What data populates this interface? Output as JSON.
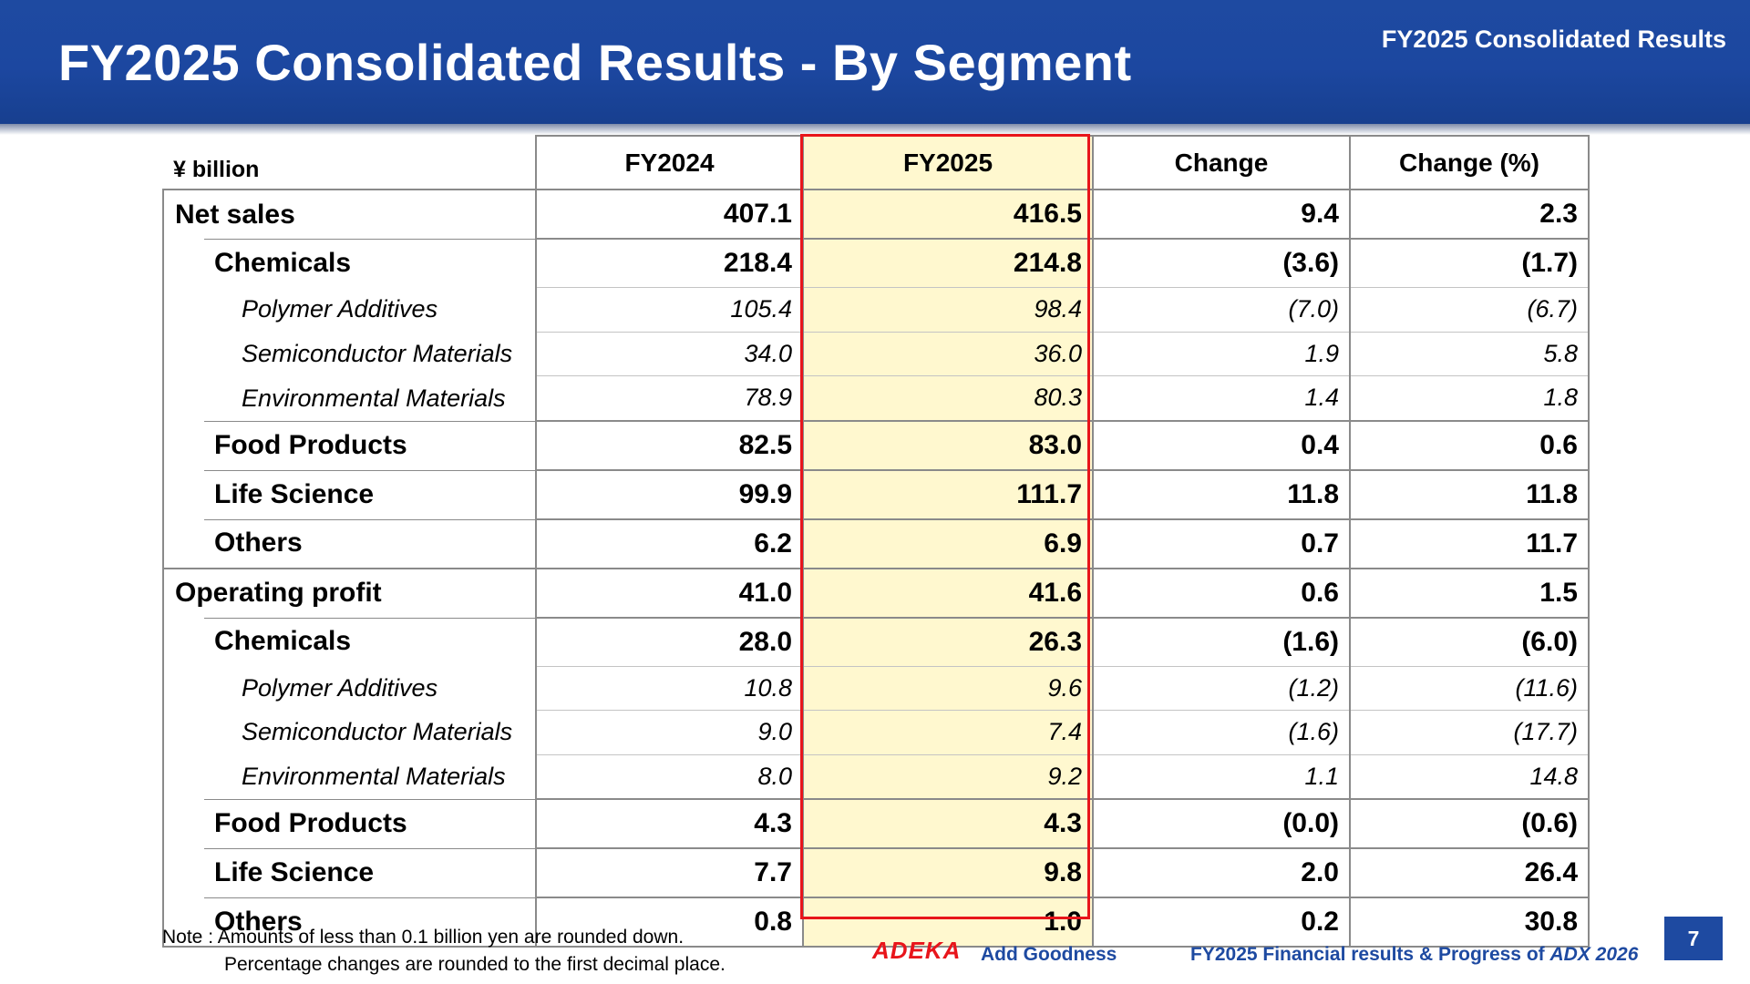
{
  "header": {
    "title": "FY2025 Consolidated Results - By Segment",
    "section": "FY2025 Consolidated Results"
  },
  "table": {
    "unit": "¥ billion",
    "columns": [
      "FY2024",
      "FY2025",
      "Change",
      "Change (%)"
    ],
    "rows": [
      {
        "label": "Net sales",
        "level": 0,
        "values": [
          "407.1",
          "416.5",
          "9.4",
          "2.3"
        ]
      },
      {
        "label": "Chemicals",
        "level": 1,
        "values": [
          "218.4",
          "214.8",
          "(3.6)",
          "(1.7)"
        ]
      },
      {
        "label": "Polymer Additives",
        "level": 2,
        "values": [
          "105.4",
          "98.4",
          "(7.0)",
          "(6.7)"
        ]
      },
      {
        "label": "Semiconductor Materials",
        "level": 2,
        "values": [
          "34.0",
          "36.0",
          "1.9",
          "5.8"
        ]
      },
      {
        "label": "Environmental Materials",
        "level": 2,
        "values": [
          "78.9",
          "80.3",
          "1.4",
          "1.8"
        ]
      },
      {
        "label": "Food Products",
        "level": 1,
        "values": [
          "82.5",
          "83.0",
          "0.4",
          "0.6"
        ]
      },
      {
        "label": "Life Science",
        "level": 1,
        "values": [
          "99.9",
          "111.7",
          "11.8",
          "11.8"
        ]
      },
      {
        "label": "Others",
        "level": 1,
        "values": [
          "6.2",
          "6.9",
          "0.7",
          "11.7"
        ]
      },
      {
        "label": "Operating profit",
        "level": 0,
        "values": [
          "41.0",
          "41.6",
          "0.6",
          "1.5"
        ]
      },
      {
        "label": "Chemicals",
        "level": 1,
        "values": [
          "28.0",
          "26.3",
          "(1.6)",
          "(6.0)"
        ]
      },
      {
        "label": "Polymer Additives",
        "level": 2,
        "values": [
          "10.8",
          "9.6",
          "(1.2)",
          "(11.6)"
        ]
      },
      {
        "label": "Semiconductor Materials",
        "level": 2,
        "values": [
          "9.0",
          "7.4",
          "(1.6)",
          "(17.7)"
        ]
      },
      {
        "label": "Environmental Materials",
        "level": 2,
        "values": [
          "8.0",
          "9.2",
          "1.1",
          "14.8"
        ]
      },
      {
        "label": "Food Products",
        "level": 1,
        "values": [
          "4.3",
          "4.3",
          "(0.0)",
          "(0.6)"
        ]
      },
      {
        "label": "Life Science",
        "level": 1,
        "values": [
          "7.7",
          "9.8",
          "2.0",
          "26.4"
        ]
      },
      {
        "label": "Others",
        "level": 1,
        "values": [
          "0.8",
          "1.0",
          "0.2",
          "30.8"
        ]
      }
    ]
  },
  "notes": {
    "line1": "Note : Amounts of less than 0.1 billion yen are rounded down.",
    "line2": "Percentage changes are rounded to the first decimal place."
  },
  "footer": {
    "logo": "ADEKA",
    "tagline": "Add Goodness",
    "text": "FY2025 Financial results & Progress of ",
    "text_em": "ADX 2026",
    "page": "7"
  },
  "colors": {
    "brand_blue": "#1e4aa1",
    "highlight_fill": "#fff8cf",
    "highlight_border": "#e8151b",
    "logo_red": "#e8151b"
  }
}
